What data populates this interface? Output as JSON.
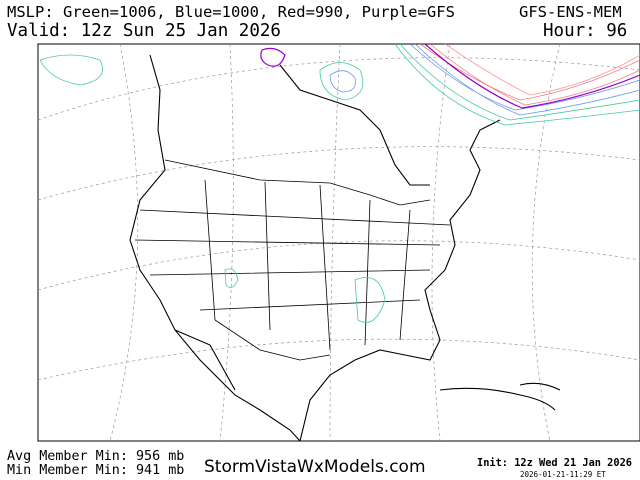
{
  "header": {
    "legend": "MSLP: Green=1006, Blue=1000, Red=990, Purple=GFS",
    "model": "GFS-ENS-MEM",
    "valid": "Valid: 12z Sun 25 Jan 2026",
    "hour": "Hour: 96"
  },
  "footer": {
    "avg_min": "Avg Member Min: 956 mb",
    "min_min": "Min Member Min: 941 mb",
    "site": "StormVistaWxModels.com",
    "init": "Init: 12z Wed 21 Jan 2026",
    "timestamp": "2026-01-21-11:29 ET"
  }
}
